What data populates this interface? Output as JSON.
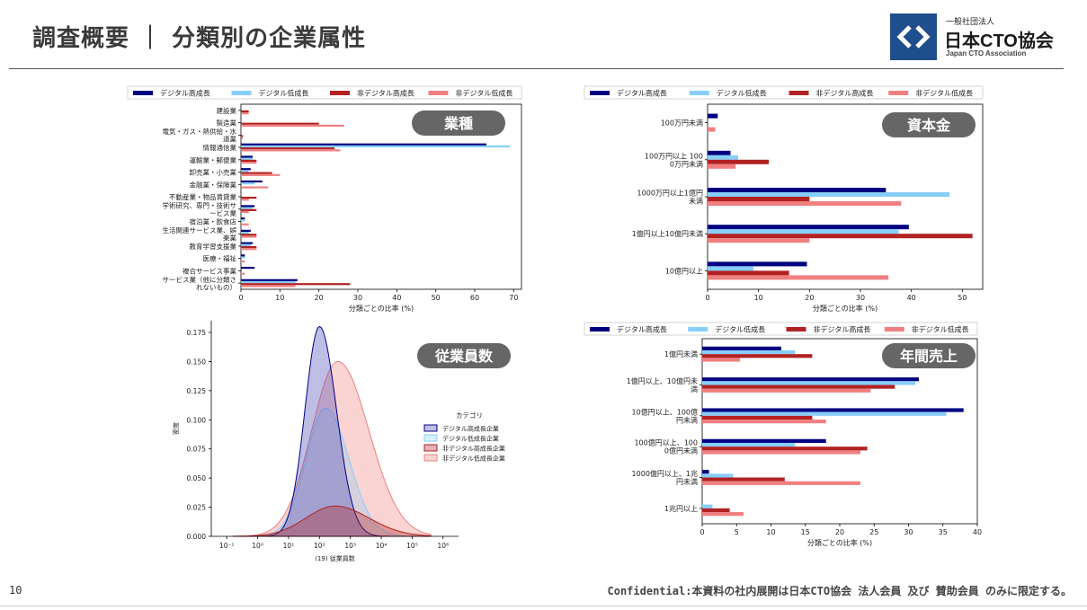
{
  "header": {
    "title": "調査概要 ｜ 分類別の企業属性",
    "logo_small": "一般社団法人",
    "logo_name": "日本CTO協会",
    "logo_en": "Japan CTO Association"
  },
  "footer": {
    "page_number": "10",
    "confidential": "Confidential:本資料の社内展開は日本CTO協会 法人会員 及び 賛助会員 のみに限定する。"
  },
  "colors": {
    "digital_high": "#000080",
    "digital_low": "#87cefa",
    "nondigital_high": "#b22222",
    "nondigital_low": "#f08080",
    "badge": "#666666"
  },
  "legend": [
    "デジタル高成長",
    "デジタル低成長",
    "非デジタル高成長",
    "非デジタル低成長"
  ],
  "chart_data": [
    {
      "type": "bar",
      "orientation": "horizontal",
      "badge": "業種",
      "xlabel": "分類ごとの比率 (%)",
      "xlim": [
        0,
        72
      ],
      "xticks": [
        0,
        10,
        20,
        30,
        40,
        50,
        60,
        70
      ],
      "categories": [
        "建設業",
        "製造業",
        "電気・ガス・熱供給・水道業",
        "情報通信業",
        "運輸業・郵便業",
        "卸売業・小売業",
        "金融業・保険業",
        "不動産業・物品賃貸業",
        "学術研究、専門・技術サービス業",
        "宿泊業・飲食店",
        "生活関連サービス業、娯楽業",
        "教育学習支援業",
        "医療・福祉",
        "複合サービス事業",
        "サービス業（他に分類されないもの）"
      ],
      "category_lines": [
        [
          "建設業"
        ],
        [
          "製造業"
        ],
        [
          "電気・ガス・熱供給・水",
          "道業"
        ],
        [
          "情報通信業"
        ],
        [
          "運輸業・郵便業"
        ],
        [
          "卸売業・小売業"
        ],
        [
          "金融業・保険業"
        ],
        [
          "不動産業・物品賃貸業"
        ],
        [
          "学術研究、専門・技術サ",
          "ービス業"
        ],
        [
          "宿泊業・飲食店"
        ],
        [
          "生活関連サービス業、娯",
          "楽業"
        ],
        [
          "教育学習支援業"
        ],
        [
          "医療・福祉"
        ],
        [
          "複合サービス事業"
        ],
        [
          "サービス業（他に分類さ",
          "れないもの）"
        ]
      ],
      "series": [
        {
          "name": "デジタル高成長",
          "values": [
            0,
            0,
            0,
            63,
            3,
            2.5,
            5.5,
            0,
            3.5,
            1,
            2.5,
            3,
            1,
            3.5,
            14.5
          ]
        },
        {
          "name": "デジタル低成長",
          "values": [
            0,
            0,
            0,
            69,
            3,
            2,
            3.5,
            0,
            3,
            1,
            2,
            2.5,
            1,
            0,
            14
          ]
        },
        {
          "name": "非デジタル高成長",
          "values": [
            2,
            20,
            0.5,
            24,
            4,
            8,
            0,
            4,
            4,
            0,
            4,
            4,
            0,
            0,
            28
          ]
        },
        {
          "name": "非デジタル低成長",
          "values": [
            2,
            26.5,
            0.5,
            25.5,
            4,
            10,
            7,
            2,
            2,
            2,
            4,
            4,
            1,
            1,
            14
          ]
        }
      ]
    },
    {
      "type": "bar",
      "orientation": "horizontal",
      "badge": "資本金",
      "xlabel": "分類ごとの比率 (%)",
      "xlim": [
        0,
        54
      ],
      "xticks": [
        0,
        10,
        20,
        30,
        40,
        50
      ],
      "categories": [
        "100万円未満",
        "100万円以上 1000万円未満",
        "1000万円以上1億円未満",
        "1億円以上10億円未満",
        "10億円以上"
      ],
      "category_lines": [
        [
          "100万円未満"
        ],
        [
          "100万円以上 100",
          "0万円未満"
        ],
        [
          "1000万円以上1億円",
          "未満"
        ],
        [
          "1億円以上10億円未満"
        ],
        [
          "10億円以上"
        ]
      ],
      "series": [
        {
          "name": "デジタル高成長",
          "values": [
            2,
            4.5,
            35,
            39.5,
            19.5
          ]
        },
        {
          "name": "デジタル低成長",
          "values": [
            0,
            6,
            47.5,
            37.5,
            9
          ]
        },
        {
          "name": "非デジタル高成長",
          "values": [
            0,
            12,
            20,
            52,
            16
          ]
        },
        {
          "name": "非デジタル低成長",
          "values": [
            1.5,
            5.5,
            38,
            20,
            35.5
          ]
        }
      ]
    },
    {
      "type": "area",
      "badge": "従業員数",
      "xlabel": "(19) 従業員数",
      "ylabel": "密度",
      "xscale": "log",
      "ylim": [
        0,
        0.185
      ],
      "yticks": [
        0.0,
        0.025,
        0.05,
        0.075,
        0.1,
        0.125,
        0.15,
        0.175
      ],
      "xticks": [
        "10⁻¹",
        "10⁰",
        "10¹",
        "10²",
        "10³",
        "10⁴",
        "10⁵",
        "10⁶"
      ],
      "legend_title": "カテゴリ",
      "legend": [
        "デジタル高成長企業",
        "デジタル低成長企業",
        "非デジタル高成長企業",
        "非デジタル低成長企業"
      ],
      "series": [
        {
          "name": "デジタル高成長企業",
          "peak_x_log10": 2.0,
          "peak_density": 0.18,
          "spread": 0.55
        },
        {
          "name": "デジタル低成長企業",
          "peak_x_log10": 2.2,
          "peak_density": 0.11,
          "spread": 0.75
        },
        {
          "name": "非デジタル高成長企業",
          "peak_x_log10": 2.5,
          "peak_density": 0.026,
          "spread": 1.1
        },
        {
          "name": "非デジタル低成長企業",
          "peak_x_log10": 2.6,
          "peak_density": 0.15,
          "spread": 1.0
        }
      ]
    },
    {
      "type": "bar",
      "orientation": "horizontal",
      "badge": "年間売上",
      "xlabel": "分類ごとの比率 (%)",
      "xlim": [
        0,
        40
      ],
      "xticks": [
        0,
        5,
        10,
        15,
        20,
        25,
        30,
        35,
        40
      ],
      "categories": [
        "1億円未満",
        "1億円以上、10億円未満",
        "10億円以上、100億円未満",
        "100億円以上、1000億円未満",
        "1000億円以上、1兆円未満",
        "1兆円以上"
      ],
      "category_lines": [
        [
          "1億円未満"
        ],
        [
          "1億円以上、10億円未",
          "満"
        ],
        [
          "10億円以上、100億",
          "円未満"
        ],
        [
          "100億円以上、100",
          "0億円未満"
        ],
        [
          "1000億円以上、1兆",
          "円未満"
        ],
        [
          "1兆円以上"
        ]
      ],
      "series": [
        {
          "name": "デジタル高成長",
          "values": [
            11.5,
            31.5,
            38,
            18,
            1,
            0
          ]
        },
        {
          "name": "デジタル低成長",
          "values": [
            13.5,
            31,
            35.5,
            13.5,
            4.5,
            1.5
          ]
        },
        {
          "name": "非デジタル高成長",
          "values": [
            16,
            28,
            16,
            24,
            12,
            4
          ]
        },
        {
          "name": "非デジタル低成長",
          "values": [
            5.5,
            24.5,
            18,
            23,
            23,
            6
          ]
        }
      ]
    }
  ]
}
